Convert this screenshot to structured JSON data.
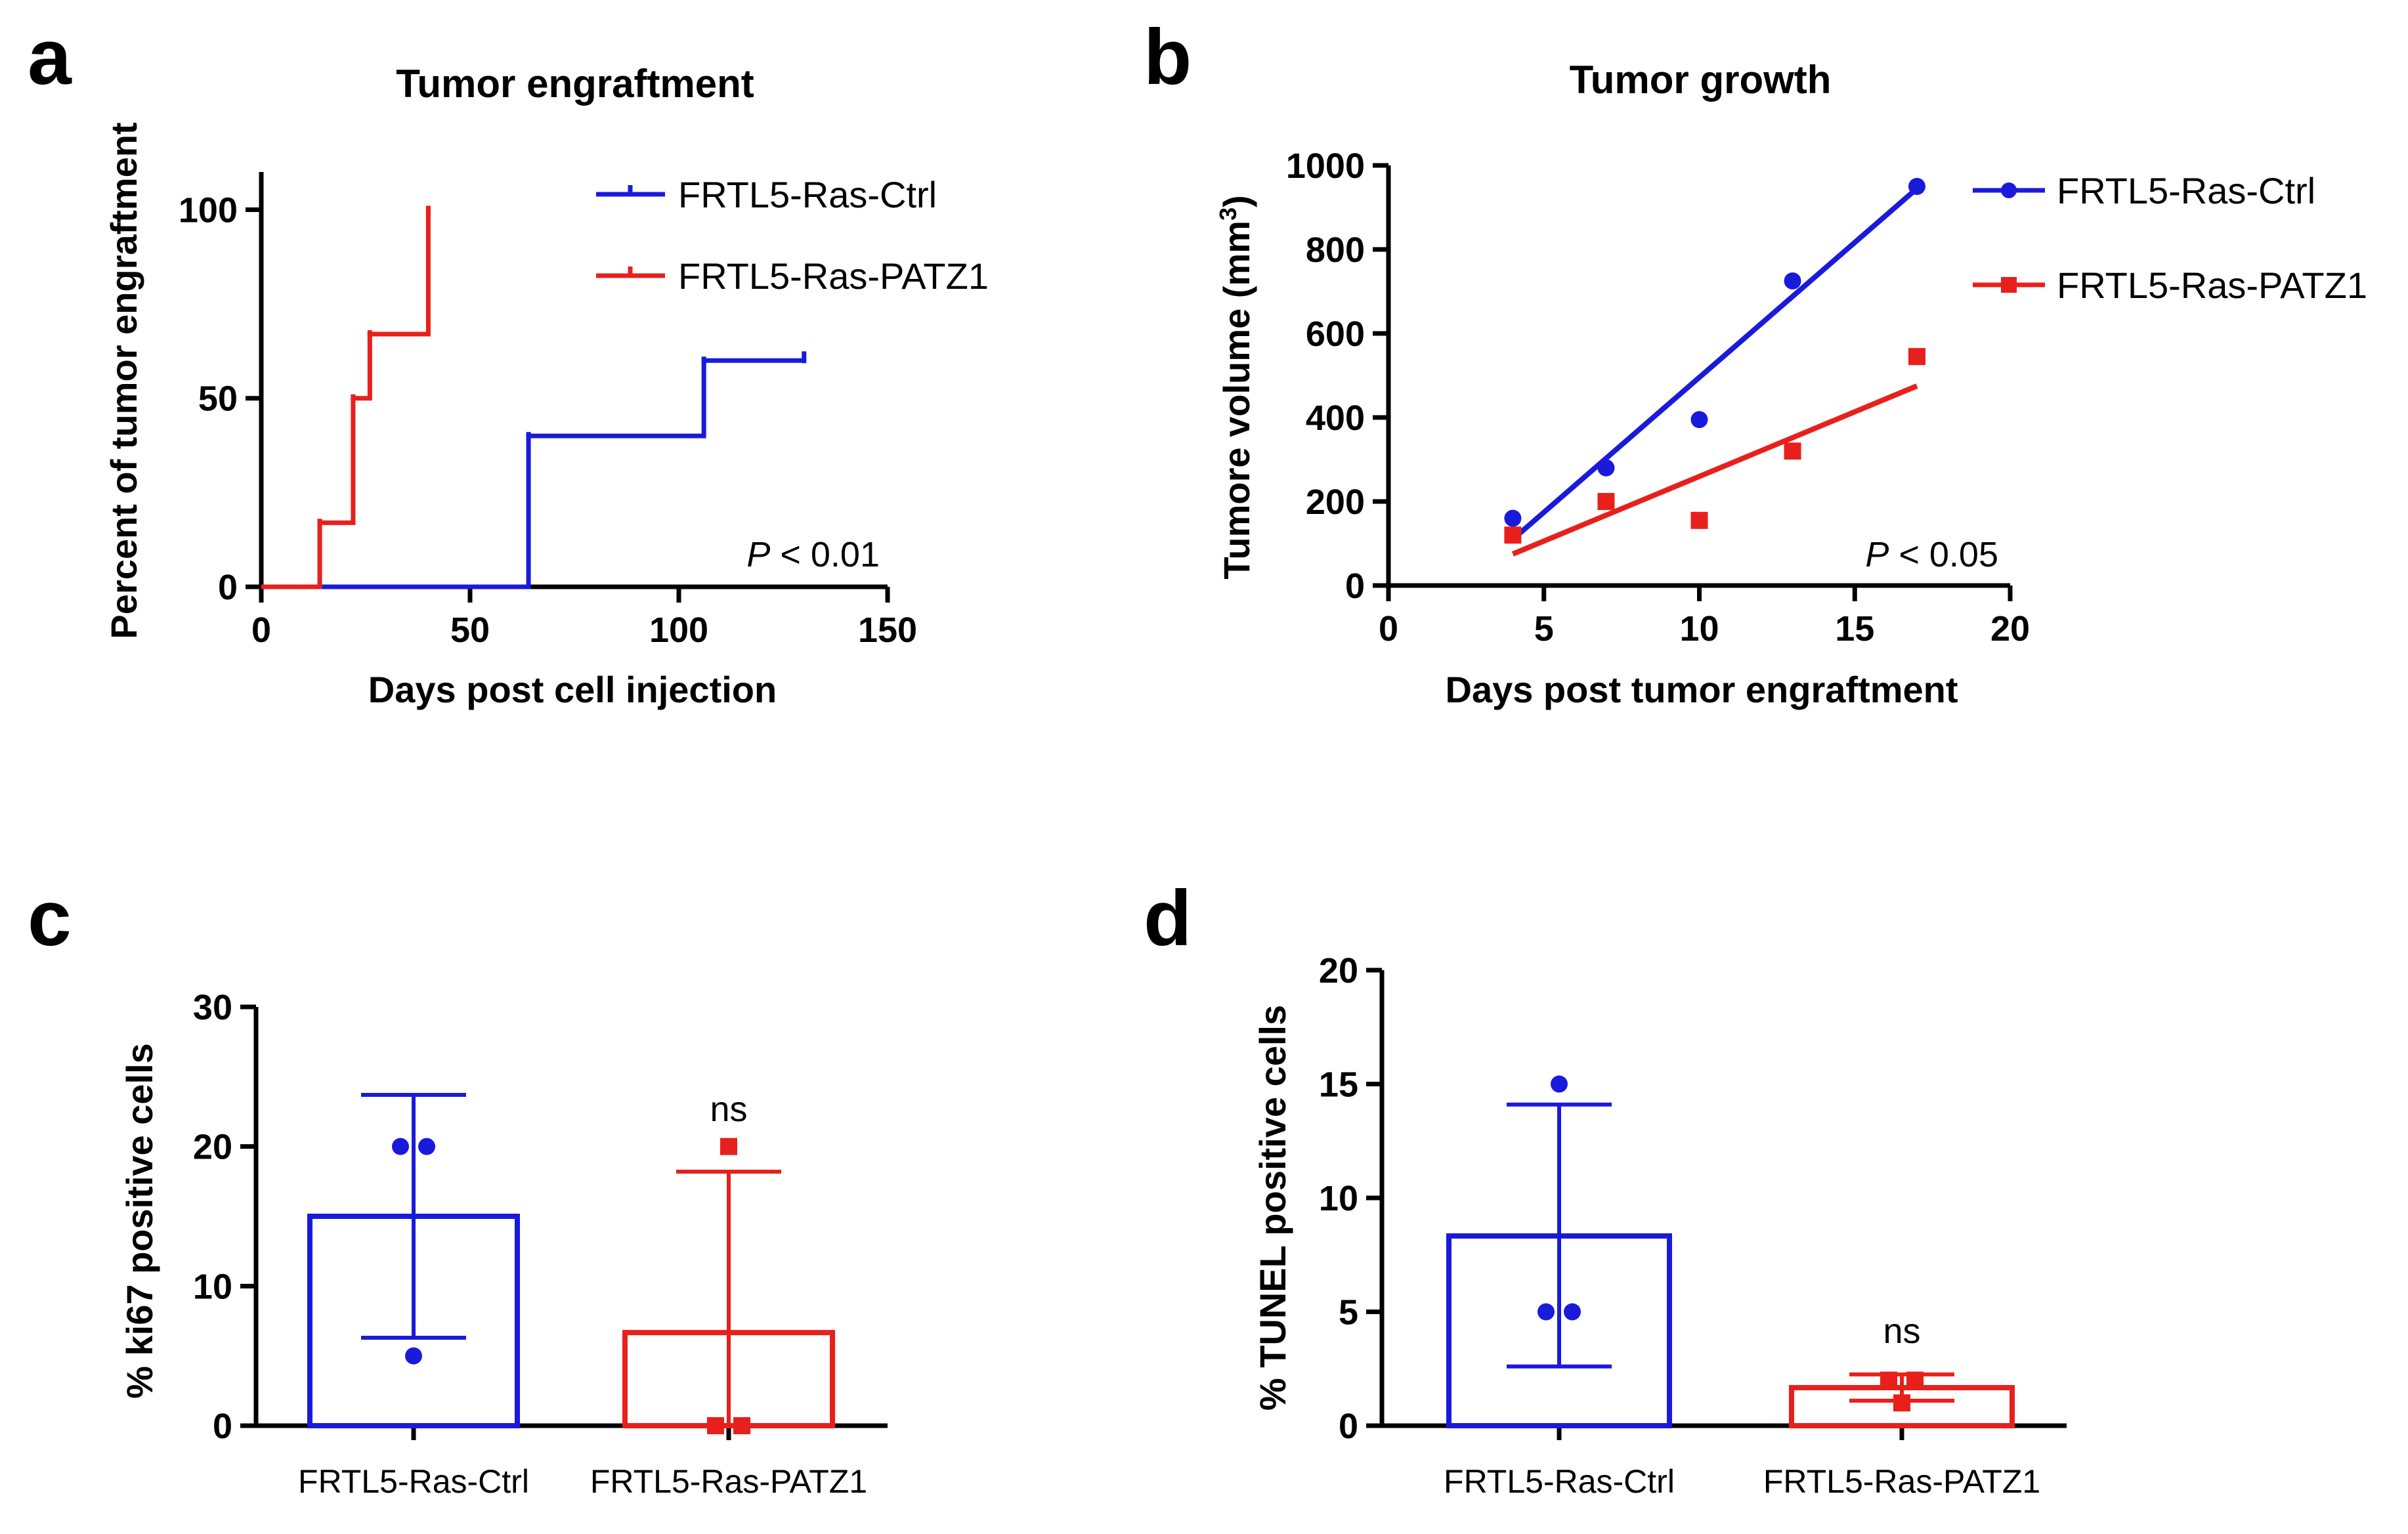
{
  "chart_data": [
    {
      "panel": "a",
      "type": "line",
      "subtype": "kaplan-meier-step",
      "title": "Tumor engraftment",
      "xlabel": "Days post cell injection",
      "ylabel": "Percent of tumor engraftment",
      "xlim": [
        0,
        150
      ],
      "ylim": [
        0,
        110
      ],
      "xticks": [
        0,
        50,
        100,
        150
      ],
      "yticks": [
        0,
        50,
        100
      ],
      "legend_position": "top-right",
      "annotation": {
        "italic": "P",
        "text": " < 0.01"
      },
      "series": [
        {
          "name": "FRTL5-Ras-Ctrl",
          "color": "#1a1adb",
          "x": [
            0,
            64,
            64,
            106,
            106,
            130
          ],
          "y": [
            0,
            0,
            40,
            40,
            60,
            60
          ],
          "censor_x": [
            130
          ]
        },
        {
          "name": "FRTL5-Ras-PATZ1",
          "color": "#e8201c",
          "x": [
            0,
            14,
            14,
            22,
            22,
            26,
            26,
            40,
            40
          ],
          "y": [
            0,
            0,
            17,
            17,
            50,
            50,
            67,
            67,
            100
          ],
          "censor_x": []
        }
      ]
    },
    {
      "panel": "b",
      "type": "scatter",
      "title": "Tumor growth",
      "xlabel": "Days post tumor engraftment",
      "ylabel": "Tumore volume (mm",
      "ylabel_sup": "3",
      "ylabel_end": ")",
      "xlim": [
        0,
        20
      ],
      "ylim": [
        0,
        1000
      ],
      "xticks": [
        0,
        5,
        10,
        15,
        20
      ],
      "yticks": [
        0,
        200,
        400,
        600,
        800,
        1000
      ],
      "legend_position": "top-right",
      "annotation": {
        "italic": "P",
        "text": " < 0.05"
      },
      "series": [
        {
          "name": "FRTL5-Ras-Ctrl",
          "color": "#1a1adb",
          "marker": "circle",
          "x": [
            4,
            7,
            10,
            13,
            17
          ],
          "y": [
            160,
            280,
            395,
            725,
            950
          ],
          "fit": {
            "x": [
              4,
              17
            ],
            "y": [
              110,
              945
            ]
          }
        },
        {
          "name": "FRTL5-Ras-PATZ1",
          "color": "#e8201c",
          "marker": "square",
          "x": [
            4,
            7,
            10,
            13,
            17
          ],
          "y": [
            120,
            200,
            155,
            320,
            545
          ],
          "fit": {
            "x": [
              4,
              17
            ],
            "y": [
              75,
              475
            ]
          }
        }
      ]
    },
    {
      "panel": "c",
      "type": "bar",
      "ylabel": "% ki67 positive cells",
      "ylim": [
        0,
        30
      ],
      "yticks": [
        0,
        10,
        20,
        30
      ],
      "categories": [
        "FRTL5-Ras-Ctrl",
        "FRTL5-Ras-PATZ1"
      ],
      "colors": [
        "#1a1adb",
        "#e8201c"
      ],
      "markers": [
        "circle",
        "square"
      ],
      "values": [
        15,
        6.67
      ],
      "error_low": [
        6.3,
        0
      ],
      "error_high": [
        23.7,
        18.2
      ],
      "points": [
        [
          20,
          20,
          5
        ],
        [
          20,
          0,
          0
        ]
      ],
      "annotations": [
        "",
        "ns"
      ]
    },
    {
      "panel": "d",
      "type": "bar",
      "ylabel": "% TUNEL positive cells",
      "ylim": [
        0,
        20
      ],
      "yticks": [
        0,
        5,
        10,
        15,
        20
      ],
      "categories": [
        "FRTL5-Ras-Ctrl",
        "FRTL5-Ras-PATZ1"
      ],
      "colors": [
        "#1a1adb",
        "#e8201c"
      ],
      "markers": [
        "circle",
        "square"
      ],
      "values": [
        8.33,
        1.67
      ],
      "error_low": [
        2.6,
        1.1
      ],
      "error_high": [
        14.1,
        2.25
      ],
      "points": [
        [
          15,
          5,
          5
        ],
        [
          2,
          2,
          1
        ]
      ],
      "annotations": [
        "",
        "ns"
      ]
    }
  ]
}
